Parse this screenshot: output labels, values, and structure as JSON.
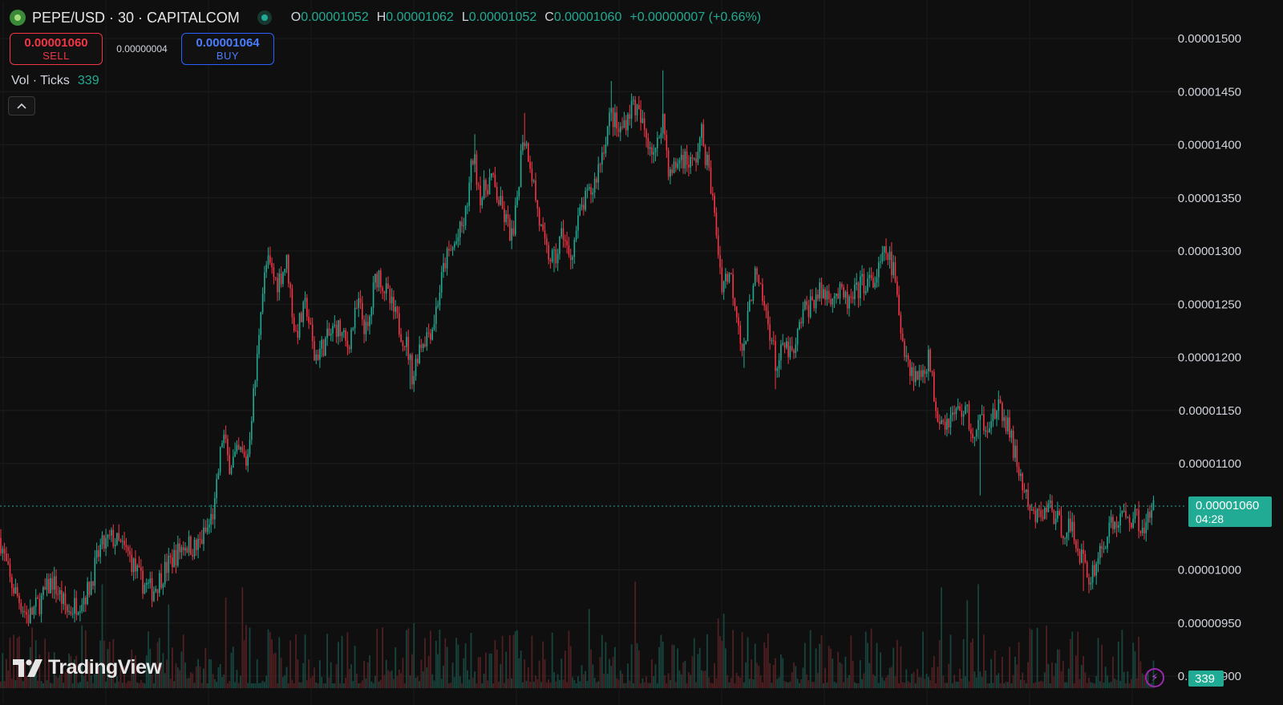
{
  "header": {
    "symbol": "PEPE/USD",
    "interval": "30",
    "exchange": "CAPITALCOM",
    "title": "PEPE/USD · 30 · CAPITALCOM",
    "ohlc": {
      "open_label": "O",
      "open": "0.00001052",
      "high_label": "H",
      "high": "0.00001062",
      "low_label": "L",
      "low": "0.00001052",
      "close_label": "C",
      "close": "0.00001060",
      "change": "+0.00000007 (+0.66%)"
    }
  },
  "trade": {
    "sell_price": "0.00001060",
    "sell_label": "SELL",
    "spread": "0.00000004",
    "buy_price": "0.00001064",
    "buy_label": "BUY"
  },
  "volume_legend": {
    "label": "Vol · Ticks",
    "value": "339"
  },
  "price_axis": {
    "ticks": [
      "0.00001500",
      "0.00001450",
      "0.00001400",
      "0.00001350",
      "0.00001300",
      "0.00001250",
      "0.00001200",
      "0.00001150",
      "0.00001100",
      "0.00001000",
      "0.00000950",
      "0.00000900"
    ]
  },
  "last_price_tag": {
    "price": "0.00001060",
    "countdown": "04:28"
  },
  "volume_tag": {
    "value": "339"
  },
  "branding": {
    "name": "TradingView"
  },
  "colors": {
    "up": "#22ab94",
    "down": "#f23645",
    "background": "#0f0f0f",
    "grid": "#1e1e1e",
    "buy": "#2962ff"
  },
  "icons": {
    "collapse": "chevron-up-icon",
    "replay": "lightning-icon",
    "logo": "tradingview-logo-icon"
  },
  "chart_data": {
    "type": "candlestick",
    "ylim": [
      9e-06,
      1.51e-05
    ],
    "last_price": 1.06e-05,
    "path": [
      [
        0,
        1.03e-05
      ],
      [
        12,
        9.9e-06
      ],
      [
        35,
        9.55e-06
      ],
      [
        50,
        9.7e-06
      ],
      [
        65,
        9.9e-06
      ],
      [
        85,
        9.6e-06
      ],
      [
        110,
        9.8e-06
      ],
      [
        125,
        1.02e-05
      ],
      [
        140,
        1.03e-05
      ],
      [
        160,
        1.015e-05
      ],
      [
        175,
        9.9e-06
      ],
      [
        190,
        9.8e-06
      ],
      [
        210,
        1.005e-05
      ],
      [
        230,
        1.025e-05
      ],
      [
        245,
        1.02e-05
      ],
      [
        260,
        1.04e-05
      ],
      [
        268,
        1.06e-05
      ],
      [
        272,
        1.09e-05
      ],
      [
        278,
        1.13e-05
      ],
      [
        285,
        1.1e-05
      ],
      [
        300,
        1.11e-05
      ],
      [
        308,
        1.1e-05
      ],
      [
        314,
        1.15e-05
      ],
      [
        320,
        1.19e-05
      ],
      [
        325,
        1.25e-05
      ],
      [
        333,
        1.29e-05
      ],
      [
        345,
        1.27e-05
      ],
      [
        358,
        1.29e-05
      ],
      [
        368,
        1.22e-05
      ],
      [
        382,
        1.25e-05
      ],
      [
        392,
        1.2e-05
      ],
      [
        402,
        1.21e-05
      ],
      [
        420,
        1.23e-05
      ],
      [
        433,
        1.21e-05
      ],
      [
        447,
        1.25e-05
      ],
      [
        458,
        1.22e-05
      ],
      [
        467,
        1.27e-05
      ],
      [
        472,
        1.28e-05
      ],
      [
        482,
        1.26e-05
      ],
      [
        492,
        1.24e-05
      ],
      [
        508,
        1.21e-05
      ],
      [
        515,
        1.18e-05
      ],
      [
        522,
        1.21e-05
      ],
      [
        540,
        1.23e-05
      ],
      [
        555,
        1.29e-05
      ],
      [
        570,
        1.31e-05
      ],
      [
        580,
        1.33e-05
      ],
      [
        590,
        1.39e-05
      ],
      [
        600,
        1.35e-05
      ],
      [
        612,
        1.37e-05
      ],
      [
        625,
        1.34e-05
      ],
      [
        640,
        1.31e-05
      ],
      [
        652,
        1.41e-05
      ],
      [
        660,
        1.39e-05
      ],
      [
        672,
        1.33e-05
      ],
      [
        680,
        1.3e-05
      ],
      [
        692,
        1.29e-05
      ],
      [
        702,
        1.32e-05
      ],
      [
        710,
        1.29e-05
      ],
      [
        725,
        1.34e-05
      ],
      [
        740,
        1.36e-05
      ],
      [
        750,
        1.39e-05
      ],
      [
        762,
        1.43e-05
      ],
      [
        772,
        1.41e-05
      ],
      [
        790,
        1.44e-05
      ],
      [
        805,
        1.41e-05
      ],
      [
        818,
        1.39e-05
      ],
      [
        826,
        1.43e-05
      ],
      [
        835,
        1.37e-05
      ],
      [
        850,
        1.39e-05
      ],
      [
        865,
        1.38e-05
      ],
      [
        875,
        1.41e-05
      ],
      [
        885,
        1.37e-05
      ],
      [
        893,
        1.32e-05
      ],
      [
        900,
        1.27e-05
      ],
      [
        910,
        1.28e-05
      ],
      [
        920,
        1.24e-05
      ],
      [
        927,
        1.2e-05
      ],
      [
        940,
        1.28e-05
      ],
      [
        952,
        1.25e-05
      ],
      [
        962,
        1.22e-05
      ],
      [
        968,
        1.19e-05
      ],
      [
        978,
        1.21e-05
      ],
      [
        990,
        1.2e-05
      ],
      [
        1000,
        1.24e-05
      ],
      [
        1020,
        1.26e-05
      ],
      [
        1045,
        1.26e-05
      ],
      [
        1060,
        1.25e-05
      ],
      [
        1075,
        1.27e-05
      ],
      [
        1090,
        1.27e-05
      ],
      [
        1100,
        1.29e-05
      ],
      [
        1105,
        1.3e-05
      ],
      [
        1115,
        1.28e-05
      ],
      [
        1122,
        1.23e-05
      ],
      [
        1135,
        1.19e-05
      ],
      [
        1145,
        1.18e-05
      ],
      [
        1158,
        1.2e-05
      ],
      [
        1168,
        1.15e-05
      ],
      [
        1180,
        1.14e-05
      ],
      [
        1195,
        1.15e-05
      ],
      [
        1205,
        1.15e-05
      ],
      [
        1215,
        1.12e-05
      ],
      [
        1222,
        1.14e-05
      ],
      [
        1232,
        1.14e-05
      ],
      [
        1245,
        1.15e-05
      ],
      [
        1255,
        1.14e-05
      ],
      [
        1265,
        1.11e-05
      ],
      [
        1275,
        1.08e-05
      ],
      [
        1285,
        1.05e-05
      ],
      [
        1295,
        1.05e-05
      ],
      [
        1310,
        1.06e-05
      ],
      [
        1322,
        1.04e-05
      ],
      [
        1335,
        1.04e-05
      ],
      [
        1350,
        1.01e-05
      ],
      [
        1358,
        9.9e-06
      ],
      [
        1368,
        1.01e-05
      ],
      [
        1385,
        1.04e-05
      ],
      [
        1400,
        1.05e-05
      ],
      [
        1415,
        1.05e-05
      ],
      [
        1428,
        1.04e-05
      ],
      [
        1440,
        1.06e-05
      ]
    ],
    "spikes": [
      [
        592,
        1.41e-05
      ],
      [
        655,
        1.43e-05
      ],
      [
        762,
        1.46e-05
      ],
      [
        826,
        1.47e-05
      ],
      [
        1222,
        1.07e-05
      ],
      [
        512,
        1.17e-05
      ],
      [
        690,
        1.28e-05
      ],
      [
        927,
        1.19e-05
      ],
      [
        968,
        1.17e-05
      ],
      [
        1350,
        9.8e-06
      ]
    ]
  }
}
